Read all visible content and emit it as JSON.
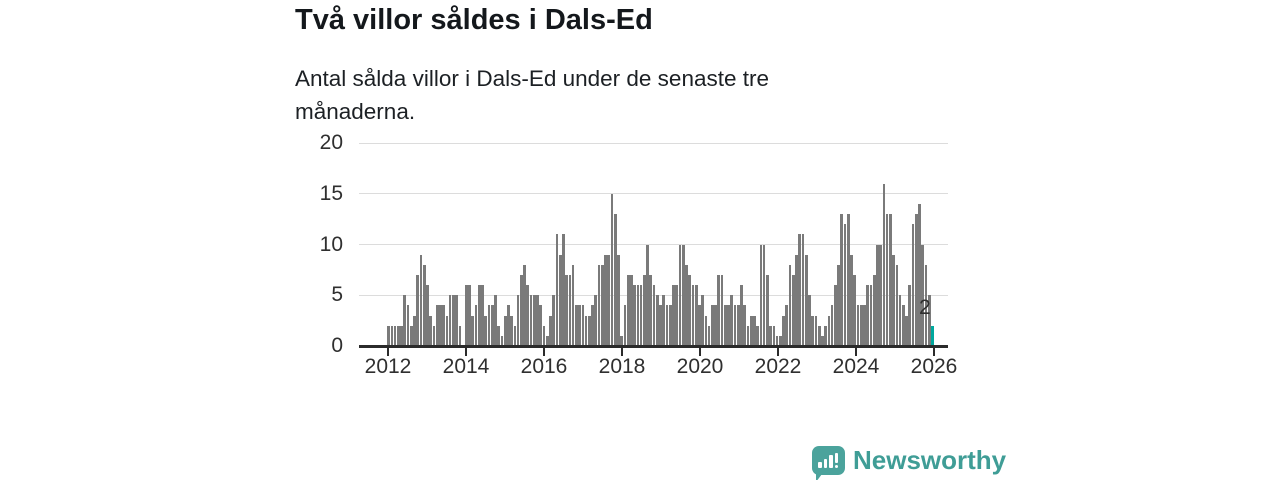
{
  "header": {
    "title": "Två villor såldes i Dals-Ed",
    "subtitle": "Antal sålda villor i Dals-Ed under de senaste tre månaderna."
  },
  "chart_data": {
    "type": "bar",
    "title": "Två villor såldes i Dals-Ed",
    "subtitle": "Antal sålda villor i Dals-Ed under de senaste tre månaderna.",
    "x_start": "2012-01",
    "x_end": "2026-01",
    "frequency": "monthly-rolling-3-month-count",
    "values": [
      2,
      2,
      2,
      2,
      2,
      5,
      4,
      2,
      3,
      7,
      9,
      8,
      6,
      3,
      2,
      4,
      4,
      4,
      3,
      5,
      5,
      5,
      2,
      0,
      6,
      6,
      3,
      4,
      6,
      6,
      3,
      4,
      4,
      5,
      2,
      1,
      3,
      4,
      3,
      2,
      5,
      7,
      8,
      6,
      5,
      5,
      5,
      4,
      2,
      1,
      3,
      5,
      11,
      9,
      11,
      7,
      7,
      8,
      4,
      4,
      4,
      3,
      3,
      4,
      5,
      8,
      8,
      9,
      9,
      15,
      13,
      9,
      1,
      4,
      7,
      7,
      6,
      6,
      6,
      7,
      10,
      7,
      6,
      5,
      4,
      5,
      4,
      4,
      6,
      6,
      10,
      10,
      8,
      7,
      6,
      6,
      4,
      5,
      3,
      2,
      4,
      4,
      7,
      7,
      4,
      4,
      5,
      4,
      4,
      6,
      4,
      2,
      3,
      3,
      2,
      10,
      10,
      7,
      2,
      2,
      1,
      1,
      3,
      4,
      8,
      7,
      9,
      11,
      11,
      9,
      5,
      3,
      3,
      2,
      1,
      2,
      3,
      4,
      6,
      8,
      13,
      12,
      13,
      9,
      7,
      4,
      4,
      4,
      6,
      6,
      7,
      10,
      10,
      16,
      13,
      13,
      9,
      8,
      5,
      4,
      3,
      6,
      12,
      13,
      14,
      10,
      8,
      5,
      2
    ],
    "ylim": [
      0,
      20
    ],
    "yticks": [
      "0",
      "5",
      "10",
      "15",
      "20"
    ],
    "ytick_values": [
      0,
      5,
      10,
      15,
      20
    ],
    "xticks": [
      "2012",
      "2014",
      "2016",
      "2018",
      "2020",
      "2022",
      "2024",
      "2026"
    ],
    "grid": true,
    "legend": "none",
    "bar_color": "#7a7a7a",
    "highlight_color": "#00a89e",
    "highlight_last_bar": true,
    "last_value_label": "2"
  },
  "annotation": {
    "label": "2"
  },
  "footer": {
    "brand": "Newsworthy",
    "brand_color": "#3f9d96"
  }
}
